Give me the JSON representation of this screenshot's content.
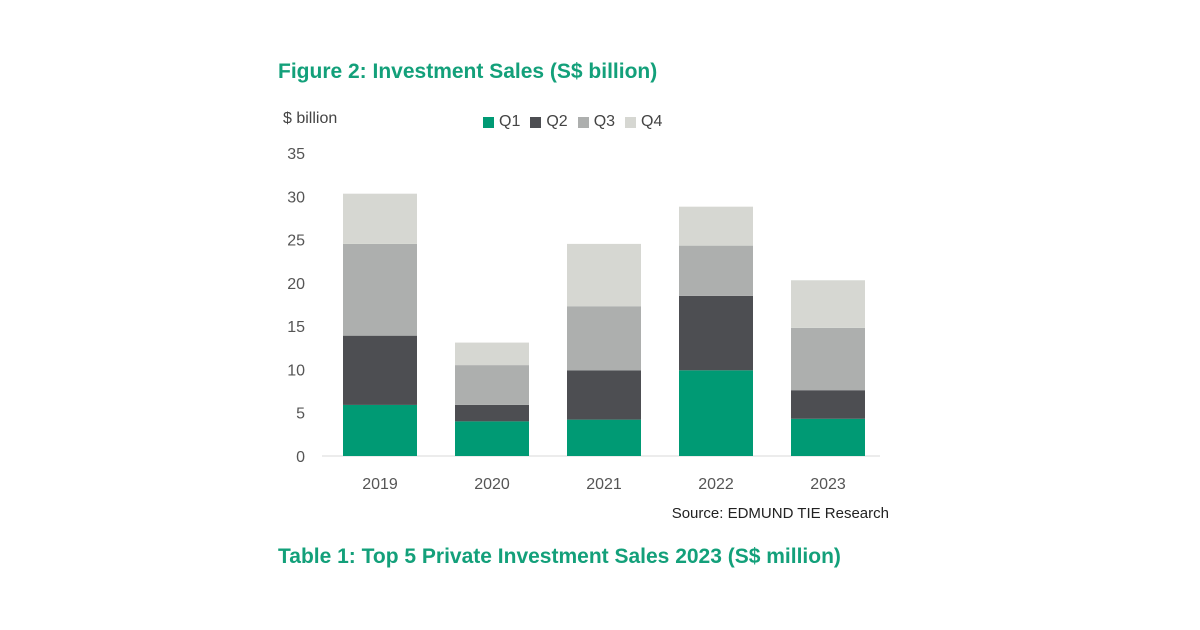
{
  "figure_title": "Figure 2: Investment Sales (S$ billion)",
  "table_title": "Table 1: Top 5 Private Investment Sales 2023 (S$ million)",
  "source": "Source: EDMUND TIE Research",
  "chart_data": {
    "type": "bar",
    "stacked": true,
    "title": "Figure 2: Investment Sales (S$ billion)",
    "ylabel": "$ billion",
    "xlabel": "",
    "ylim": [
      0,
      35
    ],
    "yticks": [
      "0",
      "5",
      "10",
      "15",
      "20",
      "25",
      "30",
      "35"
    ],
    "grid": false,
    "legend_position": "top",
    "categories": [
      "2019",
      "2020",
      "2021",
      "2022",
      "2023"
    ],
    "series": [
      {
        "name": "Q1",
        "color": "#009a74",
        "values": [
          5.9,
          4.0,
          4.2,
          9.9,
          4.3
        ]
      },
      {
        "name": "Q2",
        "color": "#4d4e52",
        "values": [
          8.0,
          1.9,
          5.7,
          8.6,
          3.3
        ]
      },
      {
        "name": "Q3",
        "color": "#adafae",
        "values": [
          10.6,
          4.6,
          7.4,
          5.8,
          7.2
        ]
      },
      {
        "name": "Q4",
        "color": "#d6d7d2",
        "values": [
          5.8,
          2.6,
          7.2,
          4.5,
          5.5
        ]
      }
    ]
  }
}
